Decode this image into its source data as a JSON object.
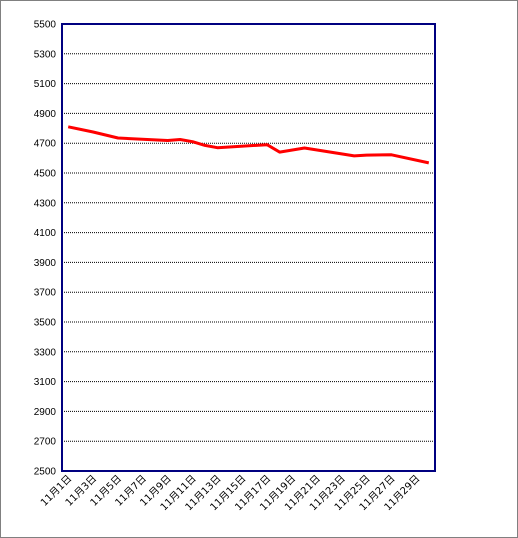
{
  "chart_data": {
    "type": "line",
    "title": "",
    "xlabel": "",
    "ylabel": "",
    "ylim": [
      2500,
      5500
    ],
    "yticks": [
      2500,
      2700,
      2900,
      3100,
      3300,
      3500,
      3700,
      3900,
      4100,
      4300,
      4500,
      4700,
      4900,
      5100,
      5300,
      5500
    ],
    "x": [
      "11月1日",
      "11月2日",
      "11月3日",
      "11月4日",
      "11月5日",
      "11月6日",
      "11月7日",
      "11月8日",
      "11月9日",
      "11月10日",
      "11月11日",
      "11月12日",
      "11月13日",
      "11月14日",
      "11月15日",
      "11月16日",
      "11月17日",
      "11月18日",
      "11月19日",
      "11月20日",
      "11月21日",
      "11月22日",
      "11月23日",
      "11月24日",
      "11月25日",
      "11月26日",
      "11月27日",
      "11月28日",
      "11月29日",
      "11月30日"
    ],
    "xtick_labels": [
      "11月1日",
      "11月3日",
      "11月5日",
      "11月7日",
      "11月9日",
      "11月11日",
      "11月13日",
      "11月15日",
      "11月17日",
      "11月19日",
      "11月21日",
      "11月23日",
      "11月25日",
      "11月27日",
      "11月29日"
    ],
    "series": [
      {
        "x": [
          "11月1日",
          "11月3日",
          "11月5日",
          "11月9日",
          "11月10日",
          "11月11日",
          "11月12日",
          "11月13日",
          "11月17日",
          "11月18日",
          "11月20日",
          "11月24日",
          "11月25日",
          "11月27日",
          "11月30日"
        ],
        "values": [
          4810,
          4775,
          4735,
          4718,
          4725,
          4710,
          4685,
          4670,
          4690,
          4640,
          4668,
          4615,
          4620,
          4622,
          4568
        ],
        "color": "#ff0000"
      }
    ],
    "grid": true,
    "legend": "none",
    "colors": {
      "line": "#ff0000",
      "grid": "#000000",
      "plot_border": "#000080"
    }
  }
}
